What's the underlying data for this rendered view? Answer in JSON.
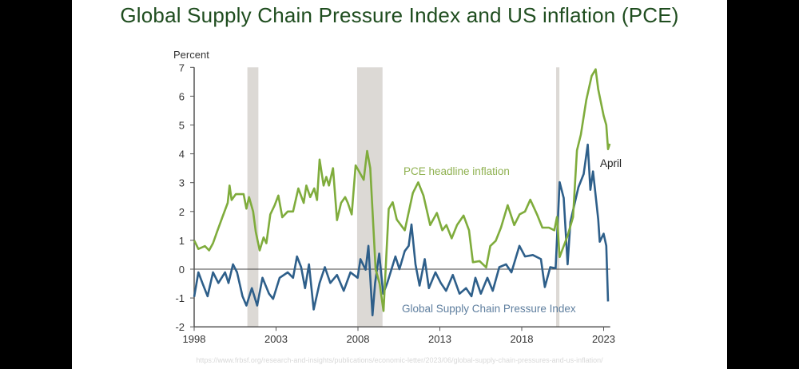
{
  "title": "Global Supply Chain Pressure Index and US inflation (PCE)",
  "source": "https://www.frbsf.org/research-and-insights/publications/economic-letter/2023/06/global-supply-chain-pressures-and-us-inflation/",
  "chart_data": {
    "type": "line",
    "title": "Global Supply Chain Pressure Index and US inflation (PCE)",
    "ylabel": "Percent",
    "xlim": [
      1998,
      2023.4
    ],
    "ylim": [
      -2,
      7
    ],
    "xticks": [
      "1998",
      "2003",
      "2008",
      "2013",
      "2018",
      "2023"
    ],
    "yticks": [
      "7",
      "6",
      "5",
      "4",
      "3",
      "2",
      "1",
      "0",
      "-1",
      "-2"
    ],
    "grid": false,
    "zero_line": true,
    "recessions": [
      [
        2001.25,
        2001.92
      ],
      [
        2007.95,
        2009.5
      ],
      [
        2020.1,
        2020.3
      ]
    ],
    "annotations": [
      {
        "text": "April",
        "x": 2023.3,
        "y": 3.7
      }
    ],
    "series": [
      {
        "name": "PCE headline inflation",
        "color": "#7fac3c",
        "points": [
          [
            1998.0,
            1.0
          ],
          [
            1998.26,
            0.7
          ],
          [
            1998.66,
            0.8
          ],
          [
            1998.91,
            0.65
          ],
          [
            1999.15,
            0.9
          ],
          [
            1999.4,
            1.3
          ],
          [
            1999.72,
            1.8
          ],
          [
            2000.05,
            2.3
          ],
          [
            2000.16,
            2.9
          ],
          [
            2000.29,
            2.4
          ],
          [
            2000.54,
            2.6
          ],
          [
            2001.02,
            2.6
          ],
          [
            2001.19,
            2.1
          ],
          [
            2001.35,
            2.5
          ],
          [
            2001.6,
            2.0
          ],
          [
            2001.76,
            1.3
          ],
          [
            2002.0,
            0.65
          ],
          [
            2002.24,
            1.1
          ],
          [
            2002.41,
            0.9
          ],
          [
            2002.65,
            1.9
          ],
          [
            2002.9,
            2.2
          ],
          [
            2003.14,
            2.55
          ],
          [
            2003.38,
            1.8
          ],
          [
            2003.71,
            2.0
          ],
          [
            2004.04,
            2.0
          ],
          [
            2004.36,
            2.8
          ],
          [
            2004.69,
            2.3
          ],
          [
            2004.85,
            2.9
          ],
          [
            2005.09,
            2.5
          ],
          [
            2005.33,
            2.8
          ],
          [
            2005.5,
            2.4
          ],
          [
            2005.66,
            3.8
          ],
          [
            2005.9,
            2.9
          ],
          [
            2006.07,
            3.2
          ],
          [
            2006.23,
            2.9
          ],
          [
            2006.48,
            3.5
          ],
          [
            2006.72,
            1.7
          ],
          [
            2006.97,
            2.3
          ],
          [
            2007.22,
            2.5
          ],
          [
            2007.38,
            2.3
          ],
          [
            2007.62,
            1.9
          ],
          [
            2007.86,
            3.6
          ],
          [
            2008.35,
            3.1
          ],
          [
            2008.56,
            4.1
          ],
          [
            2008.75,
            3.5
          ],
          [
            2009.08,
            0.0
          ],
          [
            2009.32,
            -0.5
          ],
          [
            2009.56,
            -1.45
          ],
          [
            2009.88,
            2.09
          ],
          [
            2010.12,
            2.32
          ],
          [
            2010.37,
            1.72
          ],
          [
            2010.86,
            1.35
          ],
          [
            2011.35,
            2.64
          ],
          [
            2011.68,
            3.01
          ],
          [
            2012.0,
            2.55
          ],
          [
            2012.41,
            1.53
          ],
          [
            2012.82,
            1.95
          ],
          [
            2013.15,
            1.35
          ],
          [
            2013.4,
            1.53
          ],
          [
            2013.72,
            1.07
          ],
          [
            2014.05,
            1.53
          ],
          [
            2014.45,
            1.86
          ],
          [
            2014.78,
            1.35
          ],
          [
            2015.02,
            0.24
          ],
          [
            2015.43,
            0.28
          ],
          [
            2015.83,
            0.06
          ],
          [
            2016.08,
            0.8
          ],
          [
            2016.41,
            0.98
          ],
          [
            2016.73,
            1.44
          ],
          [
            2017.14,
            2.22
          ],
          [
            2017.54,
            1.53
          ],
          [
            2017.87,
            1.9
          ],
          [
            2018.2,
            2.0
          ],
          [
            2018.52,
            2.41
          ],
          [
            2018.93,
            1.9
          ],
          [
            2019.26,
            1.44
          ],
          [
            2019.66,
            1.44
          ],
          [
            2019.99,
            1.35
          ],
          [
            2020.15,
            1.81
          ],
          [
            2020.31,
            0.42
          ],
          [
            2020.8,
            1.16
          ],
          [
            2021.13,
            1.81
          ],
          [
            2021.37,
            4.12
          ],
          [
            2021.61,
            4.67
          ],
          [
            2021.94,
            5.87
          ],
          [
            2022.27,
            6.7
          ],
          [
            2022.51,
            6.93
          ],
          [
            2022.67,
            6.24
          ],
          [
            2023.0,
            5.32
          ],
          [
            2023.16,
            5.0
          ],
          [
            2023.27,
            4.16
          ],
          [
            2023.37,
            4.35
          ]
        ]
      },
      {
        "name": "Global Supply Chain Pressure Index",
        "color": "#2e5f8a",
        "points": [
          [
            1998.0,
            -0.96
          ],
          [
            1998.26,
            -0.11
          ],
          [
            1998.5,
            -0.48
          ],
          [
            1998.82,
            -0.94
          ],
          [
            1999.15,
            -0.11
          ],
          [
            1999.48,
            -0.48
          ],
          [
            1999.89,
            -0.11
          ],
          [
            2000.1,
            -0.48
          ],
          [
            2000.37,
            0.17
          ],
          [
            2000.62,
            -0.11
          ],
          [
            2000.95,
            -0.94
          ],
          [
            2001.19,
            -1.26
          ],
          [
            2001.52,
            -0.66
          ],
          [
            2001.85,
            -1.26
          ],
          [
            2002.17,
            -0.3
          ],
          [
            2002.57,
            -0.85
          ],
          [
            2002.82,
            -1.03
          ],
          [
            2003.22,
            -0.3
          ],
          [
            2003.71,
            -0.11
          ],
          [
            2004.04,
            -0.3
          ],
          [
            2004.28,
            0.44
          ],
          [
            2004.53,
            0.07
          ],
          [
            2004.77,
            -0.66
          ],
          [
            2005.01,
            0.17
          ],
          [
            2005.3,
            -1.4
          ],
          [
            2005.66,
            -0.48
          ],
          [
            2005.98,
            0.07
          ],
          [
            2006.31,
            -0.48
          ],
          [
            2006.72,
            -0.2
          ],
          [
            2007.13,
            -0.75
          ],
          [
            2007.54,
            -0.11
          ],
          [
            2007.98,
            -0.3
          ],
          [
            2008.15,
            0.35
          ],
          [
            2008.47,
            -0.02
          ],
          [
            2008.64,
            0.81
          ],
          [
            2008.89,
            -1.6
          ],
          [
            2009.05,
            -0.48
          ],
          [
            2009.3,
            0.54
          ],
          [
            2009.54,
            -0.85
          ],
          [
            2009.79,
            -0.48
          ],
          [
            2010.29,
            0.44
          ],
          [
            2010.53,
            0.0
          ],
          [
            2010.86,
            0.63
          ],
          [
            2011.1,
            0.81
          ],
          [
            2011.27,
            1.55
          ],
          [
            2011.51,
            0.17
          ],
          [
            2011.76,
            -0.57
          ],
          [
            2012.08,
            0.35
          ],
          [
            2012.33,
            -0.66
          ],
          [
            2012.73,
            -0.11
          ],
          [
            2013.06,
            -0.48
          ],
          [
            2013.38,
            -0.75
          ],
          [
            2013.79,
            -0.2
          ],
          [
            2014.2,
            -0.85
          ],
          [
            2014.6,
            -0.66
          ],
          [
            2014.93,
            -0.94
          ],
          [
            2015.17,
            -0.3
          ],
          [
            2015.5,
            -0.85
          ],
          [
            2015.9,
            -0.3
          ],
          [
            2016.23,
            -0.75
          ],
          [
            2016.63,
            0.07
          ],
          [
            2017.04,
            0.17
          ],
          [
            2017.37,
            -0.11
          ],
          [
            2017.86,
            0.81
          ],
          [
            2018.2,
            0.44
          ],
          [
            2018.68,
            0.49
          ],
          [
            2019.17,
            0.35
          ],
          [
            2019.41,
            -0.62
          ],
          [
            2019.74,
            0.07
          ],
          [
            2020.07,
            0.03
          ],
          [
            2020.31,
            3.02
          ],
          [
            2020.56,
            2.47
          ],
          [
            2020.8,
            0.17
          ],
          [
            2020.97,
            1.64
          ],
          [
            2021.46,
            2.84
          ],
          [
            2021.78,
            3.3
          ],
          [
            2022.03,
            4.32
          ],
          [
            2022.19,
            2.75
          ],
          [
            2022.35,
            3.39
          ],
          [
            2022.67,
            1.73
          ],
          [
            2022.76,
            0.95
          ],
          [
            2023.0,
            1.23
          ],
          [
            2023.16,
            0.81
          ],
          [
            2023.27,
            -1.12
          ]
        ]
      }
    ]
  }
}
